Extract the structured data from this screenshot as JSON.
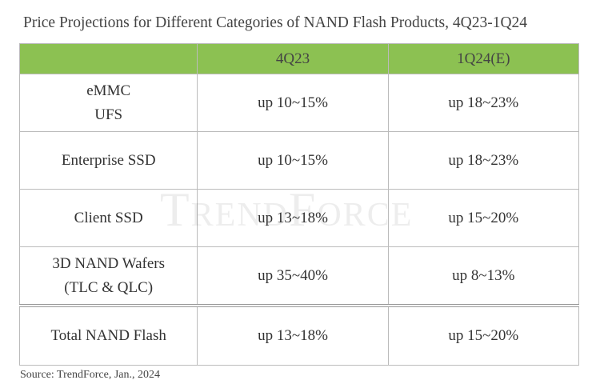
{
  "title": "Price Projections for Different Categories of NAND Flash Products, 4Q23-1Q24",
  "table": {
    "header": [
      "4Q23",
      "1Q24(E)"
    ],
    "rows": [
      [
        "eMMC\nUFS",
        "up 10~15%",
        "up 18~23%"
      ],
      [
        "Enterprise SSD",
        "up 10~15%",
        "up 18~23%"
      ],
      [
        "Client SSD",
        "up 13~18%",
        "up 15~20%"
      ],
      [
        "3D NAND Wafers\n(TLC & QLC)",
        "up 35~40%",
        "up 8~13%"
      ],
      [
        "Total NAND Flash",
        "up 13~18%",
        "up 15~20%"
      ]
    ]
  },
  "watermark": "TrendForce",
  "source": "Source: TrendForce, Jan., 2024"
}
